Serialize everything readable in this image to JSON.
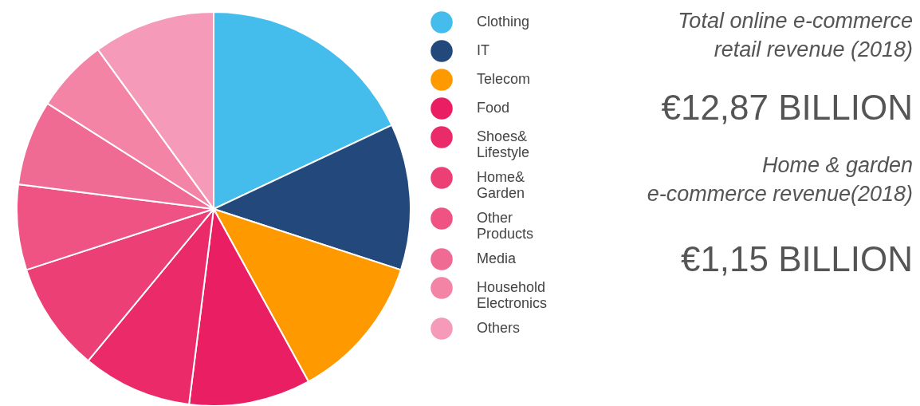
{
  "chart_data": {
    "type": "pie",
    "categories": [
      "Clothing",
      "IT",
      "Telecom",
      "Food",
      "Shoes&\nLifestyle",
      "Home&\nGarden",
      "Other\nProducts",
      "Media",
      "Household\nElectronics",
      "Others"
    ],
    "values": [
      18,
      12,
      12,
      10,
      9,
      9,
      7,
      7,
      6,
      10
    ],
    "colors": [
      "#44bdec",
      "#23497c",
      "#ff9900",
      "#e91e63",
      "#ea2a69",
      "#ec3f75",
      "#ee5384",
      "#f06b94",
      "#f384a6",
      "#f59ab8"
    ],
    "legend": "right",
    "annotations": [
      "Total online e-commerce\nretail revenue (2018)",
      "€12,87 BILLION",
      "Home & garden\ne-commerce revenue(2018)",
      "€1,15 BILLION"
    ]
  }
}
